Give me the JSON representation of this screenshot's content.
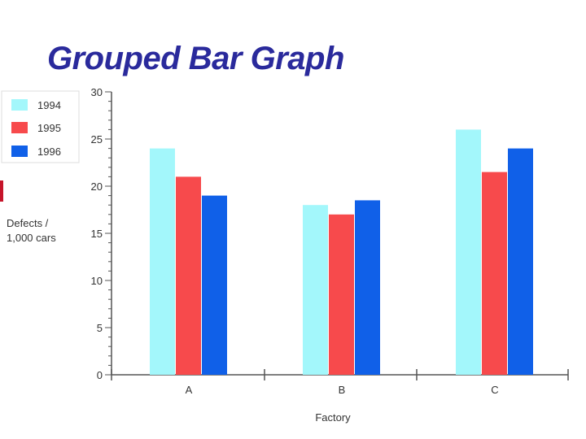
{
  "slide": {
    "title": "Grouped Bar Graph"
  },
  "chart_data": {
    "type": "bar",
    "categories": [
      "A",
      "B",
      "C"
    ],
    "series": [
      {
        "name": "1994",
        "values": [
          24,
          18,
          26
        ],
        "color": "#a3f7fb"
      },
      {
        "name": "1995",
        "values": [
          21,
          17,
          21.5
        ],
        "color": "#f74a4c"
      },
      {
        "name": "1996",
        "values": [
          19,
          18.5,
          24
        ],
        "color": "#1060e8"
      }
    ],
    "xlabel": "Factory",
    "ylabel_lines": [
      "Defects /",
      "1,000 cars"
    ],
    "ylim": [
      0,
      30
    ],
    "yticks": [
      0,
      5,
      10,
      15,
      20,
      25,
      30
    ],
    "grid": false,
    "legend_position": "top-left"
  }
}
